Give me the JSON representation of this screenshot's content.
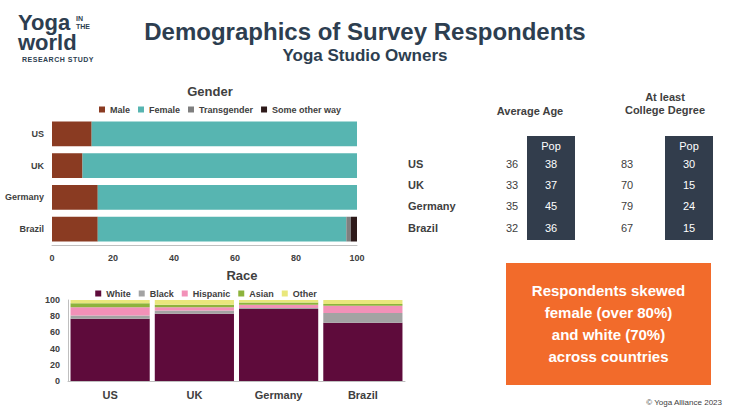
{
  "header": {
    "title": "Demographics of Survey Respondents",
    "subtitle": "Yoga Studio Owners"
  },
  "logo": {
    "lines": [
      "Yoga",
      "IN THE",
      "world",
      "RESEARCH STUDY"
    ]
  },
  "chart_data": [
    {
      "type": "bar",
      "title": "Gender",
      "orientation": "horizontal",
      "stacked": true,
      "legend": "top-left",
      "grid": false,
      "categories": [
        "US",
        "UK",
        "Germany",
        "Brazil"
      ],
      "series": [
        {
          "name": "Male",
          "color": "#8a3b22",
          "values": [
            13,
            10,
            15,
            15
          ]
        },
        {
          "name": "Female",
          "color": "#57b5b1",
          "values": [
            87,
            90,
            85,
            81.5
          ]
        },
        {
          "name": "Transgender",
          "color": "#7f7f7f",
          "values": [
            0,
            0,
            0,
            1.5
          ]
        },
        {
          "name": "Some other way",
          "color": "#2e1a1a",
          "values": [
            0,
            0,
            0,
            2
          ]
        }
      ],
      "xlim": [
        0,
        100
      ],
      "xticks": [
        0,
        20,
        40,
        60,
        80,
        100
      ]
    },
    {
      "type": "bar",
      "title": "Race",
      "stacked": true,
      "legend": "top",
      "grid": false,
      "categories": [
        "US",
        "UK",
        "Germany",
        "Brazil"
      ],
      "series": [
        {
          "name": "White",
          "color": "#5e0b3b",
          "values": [
            77,
            83,
            89,
            72
          ]
        },
        {
          "name": "Black",
          "color": "#a3a3a3",
          "values": [
            4,
            4,
            1,
            12
          ]
        },
        {
          "name": "Hispanic",
          "color": "#f291b8",
          "values": [
            10,
            4,
            4,
            9
          ]
        },
        {
          "name": "Asian",
          "color": "#8db33c",
          "values": [
            5,
            3,
            3,
            2
          ]
        },
        {
          "name": "Other",
          "color": "#e9e77c",
          "values": [
            4,
            6,
            3,
            5
          ]
        }
      ],
      "ylim": [
        0,
        100
      ],
      "yticks": [
        0,
        20,
        40,
        60,
        80,
        100
      ]
    }
  ],
  "table": {
    "groups": [
      [
        "Average Age"
      ],
      [
        "At least",
        "College Degree"
      ]
    ],
    "sub_header": "Pop",
    "rows": [
      [
        "US",
        36,
        38,
        83,
        30
      ],
      [
        "UK",
        33,
        37,
        70,
        15
      ],
      [
        "Germany",
        35,
        45,
        79,
        24
      ],
      [
        "Brazil",
        32,
        36,
        67,
        15
      ]
    ]
  },
  "callout": {
    "lines": [
      "Respondents skewed",
      "female (over 80%)",
      "and white (70%)",
      "across countries"
    ]
  },
  "footer": "© Yoga Alliance 2023"
}
